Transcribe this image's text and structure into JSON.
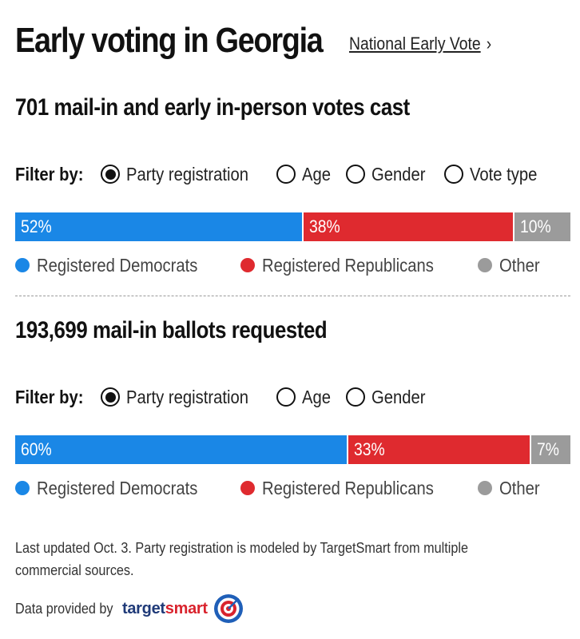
{
  "header": {
    "title": "Early voting in Georgia",
    "nav_link": "National Early Vote",
    "nav_icon": "chevron-right-icon"
  },
  "filter_label": "Filter by:",
  "colors": {
    "democrats": "#1a87e6",
    "republicans": "#df2a2f",
    "other": "#9b9b9b"
  },
  "sections": [
    {
      "count": "701",
      "title_rest": "mail-in and early in-person votes cast",
      "filters": [
        {
          "label": "Party registration",
          "selected": true
        },
        {
          "label": "Age",
          "selected": false
        },
        {
          "label": "Gender",
          "selected": false
        },
        {
          "label": "Vote type",
          "selected": false
        }
      ],
      "legend": [
        "Registered Democrats",
        "Registered Republicans",
        "Other"
      ]
    },
    {
      "count": "193,699",
      "title_rest": "mail-in ballots requested",
      "filters": [
        {
          "label": "Party registration",
          "selected": true
        },
        {
          "label": "Age",
          "selected": false
        },
        {
          "label": "Gender",
          "selected": false
        }
      ],
      "legend": [
        "Registered Democrats",
        "Registered Republicans",
        "Other"
      ]
    }
  ],
  "chart_data": [
    {
      "type": "bar",
      "stacked": true,
      "orientation": "horizontal",
      "categories": [
        "Registered Democrats",
        "Registered Republicans",
        "Other"
      ],
      "values": [
        52,
        38,
        10
      ],
      "labels": [
        "52%",
        "38%",
        "10%"
      ]
    },
    {
      "type": "bar",
      "stacked": true,
      "orientation": "horizontal",
      "categories": [
        "Registered Democrats",
        "Registered Republicans",
        "Other"
      ],
      "values": [
        60,
        33,
        7
      ],
      "labels": [
        "60%",
        "33%",
        "7%"
      ]
    }
  ],
  "footnote": {
    "line1": "Last updated Oct. 3. Party registration is modeled by TargetSmart from multiple",
    "line2": "commercial sources."
  },
  "provided_by": "Data provided by",
  "brand": {
    "name_part1": "target",
    "name_part2": "smart",
    "icon": "targetsmart-logo-icon"
  }
}
